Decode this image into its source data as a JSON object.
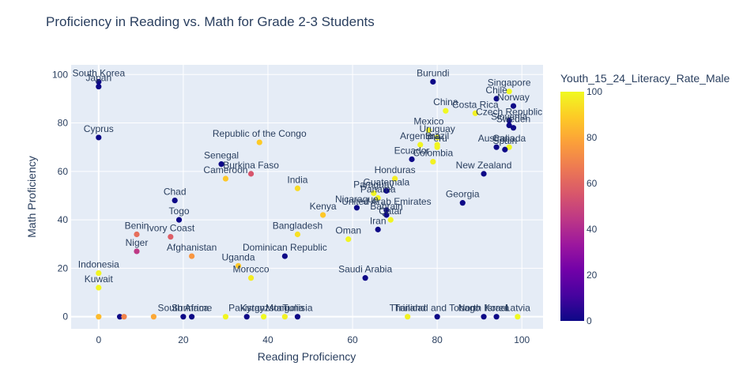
{
  "chart_data": {
    "type": "scatter",
    "title": "Proficiency in Reading vs. Math for Grade 2-3 Students",
    "xlabel": "Reading Proficiency",
    "ylabel": "Math Proficiency",
    "xlim": [
      -6.5,
      105
    ],
    "ylim": [
      -5,
      104
    ],
    "xticks": [
      0,
      20,
      40,
      60,
      80,
      100
    ],
    "yticks": [
      0,
      20,
      40,
      60,
      80,
      100
    ],
    "grid": true,
    "colorbar": {
      "title": "Youth_15_24_Literacy_Rate_Male",
      "range": [
        0,
        100
      ],
      "ticks": [
        0,
        20,
        40,
        60,
        80,
        100
      ]
    },
    "points": [
      {
        "label": "South Korea",
        "x": 0,
        "y": 97,
        "c": 0
      },
      {
        "label": "Japan",
        "x": 0,
        "y": 95,
        "c": 0
      },
      {
        "label": "Cyprus",
        "x": 0,
        "y": 74,
        "c": 0
      },
      {
        "label": "Indonesia",
        "x": 0,
        "y": 18,
        "c": 99
      },
      {
        "label": "Kuwait",
        "x": 0,
        "y": 12,
        "c": 99
      },
      {
        "label": "Burundi",
        "x": 79,
        "y": 97,
        "c": 0
      },
      {
        "label": "Singapore",
        "x": 97,
        "y": 93,
        "c": 100
      },
      {
        "label": "Chile",
        "x": 94,
        "y": 90,
        "c": 0
      },
      {
        "label": "Norway",
        "x": 98,
        "y": 87,
        "c": 0
      },
      {
        "label": "Costa Rica",
        "x": 89,
        "y": 84,
        "c": 98
      },
      {
        "label": "China",
        "x": 82,
        "y": 85,
        "c": 100
      },
      {
        "label": "Czech Republic",
        "x": 97,
        "y": 81,
        "c": 0
      },
      {
        "label": "Slovenia",
        "x": 97,
        "y": 79,
        "c": 0
      },
      {
        "label": "Sweden",
        "x": 98,
        "y": 78,
        "c": 0
      },
      {
        "label": "Mexico",
        "x": 78,
        "y": 77,
        "c": 99
      },
      {
        "label": "Uruguay",
        "x": 80,
        "y": 74,
        "c": 99
      },
      {
        "label": "Brazil",
        "x": 80,
        "y": 71,
        "c": 99
      },
      {
        "label": "Peru",
        "x": 80,
        "y": 70,
        "c": 99
      },
      {
        "label": "Argentina",
        "x": 76,
        "y": 71,
        "c": 99
      },
      {
        "label": "Australia",
        "x": 94,
        "y": 70,
        "c": 0
      },
      {
        "label": "Canada",
        "x": 97,
        "y": 70,
        "c": 100
      },
      {
        "label": "Spain",
        "x": 96,
        "y": 69,
        "c": 0
      },
      {
        "label": "Ecuador",
        "x": 74,
        "y": 65,
        "c": 0
      },
      {
        "label": "Colombia",
        "x": 79,
        "y": 64,
        "c": 98
      },
      {
        "label": "New Zealand",
        "x": 91,
        "y": 59,
        "c": 0
      },
      {
        "label": "Honduras",
        "x": 70,
        "y": 57,
        "c": 97
      },
      {
        "label": "Guatemala",
        "x": 68,
        "y": 52,
        "c": 0
      },
      {
        "label": "Paraguay",
        "x": 65,
        "y": 51,
        "c": 99
      },
      {
        "label": "Panama",
        "x": 66,
        "y": 49,
        "c": 99
      },
      {
        "label": "Georgia",
        "x": 86,
        "y": 47,
        "c": 0
      },
      {
        "label": "Nicaragua",
        "x": 61,
        "y": 45,
        "c": 0
      },
      {
        "label": "United Arab Emirates",
        "x": 68,
        "y": 44,
        "c": 0
      },
      {
        "label": "Bahrain",
        "x": 68,
        "y": 42,
        "c": 0
      },
      {
        "label": "Qatar",
        "x": 69,
        "y": 40,
        "c": 99
      },
      {
        "label": "Iran",
        "x": 66,
        "y": 36,
        "c": 0
      },
      {
        "label": "Oman",
        "x": 59,
        "y": 32,
        "c": 99
      },
      {
        "label": "Saudi Arabia",
        "x": 63,
        "y": 16,
        "c": 0
      },
      {
        "label": "Republic of the Congo",
        "x": 38,
        "y": 72,
        "c": 89
      },
      {
        "label": "Senegal",
        "x": 29,
        "y": 63,
        "c": 0
      },
      {
        "label": "Burkina Faso",
        "x": 36,
        "y": 59,
        "c": 55
      },
      {
        "label": "Cameroon",
        "x": 30,
        "y": 57,
        "c": 88
      },
      {
        "label": "India",
        "x": 47,
        "y": 53,
        "c": 93
      },
      {
        "label": "Kenya",
        "x": 53,
        "y": 42,
        "c": 88
      },
      {
        "label": "Bangladesh",
        "x": 47,
        "y": 34,
        "c": 94
      },
      {
        "label": "Dominican Republic",
        "x": 44,
        "y": 25,
        "c": 0
      },
      {
        "label": "Uganda",
        "x": 33,
        "y": 21,
        "c": 88
      },
      {
        "label": "Morocco",
        "x": 36,
        "y": 16,
        "c": 97
      },
      {
        "label": "Chad",
        "x": 18,
        "y": 48,
        "c": 0
      },
      {
        "label": "Togo",
        "x": 19,
        "y": 40,
        "c": 0
      },
      {
        "label": "Benin",
        "x": 9,
        "y": 34,
        "c": 63
      },
      {
        "label": "Ivory Coast",
        "x": 17,
        "y": 33,
        "c": 58
      },
      {
        "label": "Niger",
        "x": 9,
        "y": 27,
        "c": 45
      },
      {
        "label": "Afghanistan",
        "x": 22,
        "y": 25,
        "c": 75
      },
      {
        "label": "",
        "x": 0,
        "y": 0,
        "c": 85
      },
      {
        "label": "",
        "x": 5,
        "y": 0,
        "c": 0
      },
      {
        "label": "",
        "x": 6,
        "y": 0,
        "c": 70
      },
      {
        "label": "",
        "x": 13,
        "y": 0,
        "c": 80
      },
      {
        "label": "South Africa",
        "x": 20,
        "y": 0,
        "c": 0
      },
      {
        "label": "Suriname",
        "x": 22,
        "y": 0,
        "c": 0
      },
      {
        "label": "",
        "x": 30,
        "y": 0,
        "c": 99
      },
      {
        "label": "Pakistan",
        "x": 35,
        "y": 0,
        "c": 0
      },
      {
        "label": "Kyrgyzstan",
        "x": 39,
        "y": 0,
        "c": 100
      },
      {
        "label": "Mongolia",
        "x": 44,
        "y": 0,
        "c": 98
      },
      {
        "label": "Tunisia",
        "x": 47,
        "y": 0,
        "c": 0
      },
      {
        "label": "Thailand",
        "x": 73,
        "y": 0,
        "c": 98
      },
      {
        "label": "Trinidad and Tobago",
        "x": 80,
        "y": 0,
        "c": 0
      },
      {
        "label": "North Korea",
        "x": 91,
        "y": 0,
        "c": 0
      },
      {
        "label": "Israel",
        "x": 94,
        "y": 0,
        "c": 0
      },
      {
        "label": "Latvia",
        "x": 99,
        "y": 0,
        "c": 100
      }
    ]
  }
}
